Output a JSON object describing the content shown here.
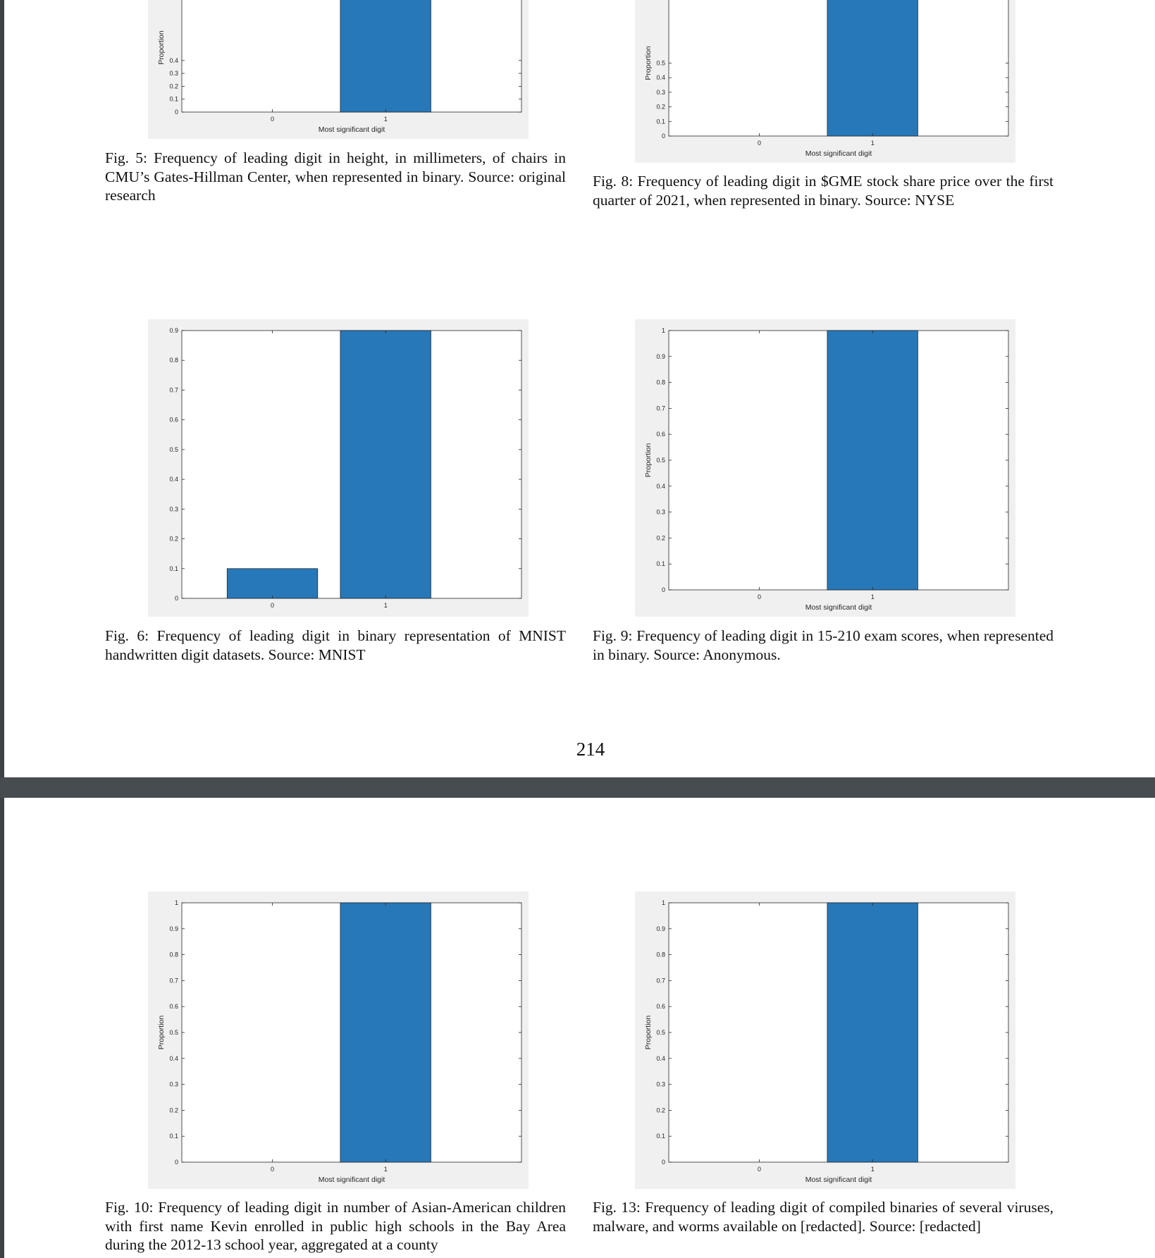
{
  "page_number": "214",
  "colors": {
    "bar": "#2778b9",
    "figure_bg": "#f0f0f0",
    "separator": "#474c51"
  },
  "captions": {
    "fig5": "Fig. 5: Frequency of leading digit in height, in millimeters, of chairs in CMU’s Gates-Hillman Center, when represented in binary. Source: original research",
    "fig8": "Fig. 8: Frequency of leading digit in $GME stock share price over the first quarter of 2021, when represented in binary. Source: NYSE",
    "fig6": "Fig. 6: Frequency of leading digit in binary representation of MNIST handwritten digit datasets. Source: MNIST",
    "fig9": "Fig. 9: Frequency of leading digit in 15-210 exam scores, when represented in binary. Source: Anonymous.",
    "fig10": "Fig. 10: Frequency of leading digit in number of Asian-American children with first name Kevin enrolled in public high schools in the Bay Area during the 2012-13 school year, aggregated at a county",
    "fig13": "Fig. 13: Frequency of leading digit of compiled binaries of several viruses, malware, and worms available on [redacted]. Source: [redacted]"
  },
  "chart_data": [
    {
      "id": "fig5",
      "type": "bar",
      "categories": [
        "0",
        "1"
      ],
      "values": [
        0,
        1
      ],
      "xlabel": "Most significant digit",
      "ylabel": "Proportion",
      "ylim": [
        0,
        1
      ],
      "yticks": [
        "0",
        "0.1",
        "0.2",
        "0.3",
        "0.4"
      ],
      "ylabel_partially_visible": true
    },
    {
      "id": "fig8",
      "type": "bar",
      "categories": [
        "0",
        "1"
      ],
      "values": [
        0,
        1
      ],
      "xlabel": "Most significant digit",
      "ylabel": "Proportion",
      "ylim": [
        0,
        1
      ],
      "yticks": [
        "0",
        "0.1",
        "0.2",
        "0.3",
        "0.4",
        "0.5"
      ],
      "ylabel_partially_visible": true
    },
    {
      "id": "fig6",
      "type": "bar",
      "categories": [
        "0",
        "1"
      ],
      "values": [
        0.1,
        0.9
      ],
      "xlabel": "",
      "ylabel": "",
      "ylim": [
        0,
        0.9
      ],
      "yticks": [
        "0",
        "0.1",
        "0.2",
        "0.3",
        "0.4",
        "0.5",
        "0.6",
        "0.7",
        "0.8",
        "0.9"
      ]
    },
    {
      "id": "fig9",
      "type": "bar",
      "categories": [
        "0",
        "1"
      ],
      "values": [
        0,
        1
      ],
      "xlabel": "Most significant digit",
      "ylabel": "Proportion",
      "ylim": [
        0,
        1
      ],
      "yticks": [
        "0",
        "0.1",
        "0.2",
        "0.3",
        "0.4",
        "0.5",
        "0.6",
        "0.7",
        "0.8",
        "0.9",
        "1"
      ]
    },
    {
      "id": "fig10",
      "type": "bar",
      "categories": [
        "0",
        "1"
      ],
      "values": [
        0,
        1
      ],
      "xlabel": "Most significant digit",
      "ylabel": "Proportion",
      "ylim": [
        0,
        1
      ],
      "yticks": [
        "0",
        "0.1",
        "0.2",
        "0.3",
        "0.4",
        "0.5",
        "0.6",
        "0.7",
        "0.8",
        "0.9",
        "1"
      ]
    },
    {
      "id": "fig13",
      "type": "bar",
      "categories": [
        "0",
        "1"
      ],
      "values": [
        0,
        1
      ],
      "xlabel": "Most significant digit",
      "ylabel": "Proportion",
      "ylim": [
        0,
        1
      ],
      "yticks": [
        "0",
        "0.1",
        "0.2",
        "0.3",
        "0.4",
        "0.5",
        "0.6",
        "0.7",
        "0.8",
        "0.9",
        "1"
      ]
    }
  ]
}
